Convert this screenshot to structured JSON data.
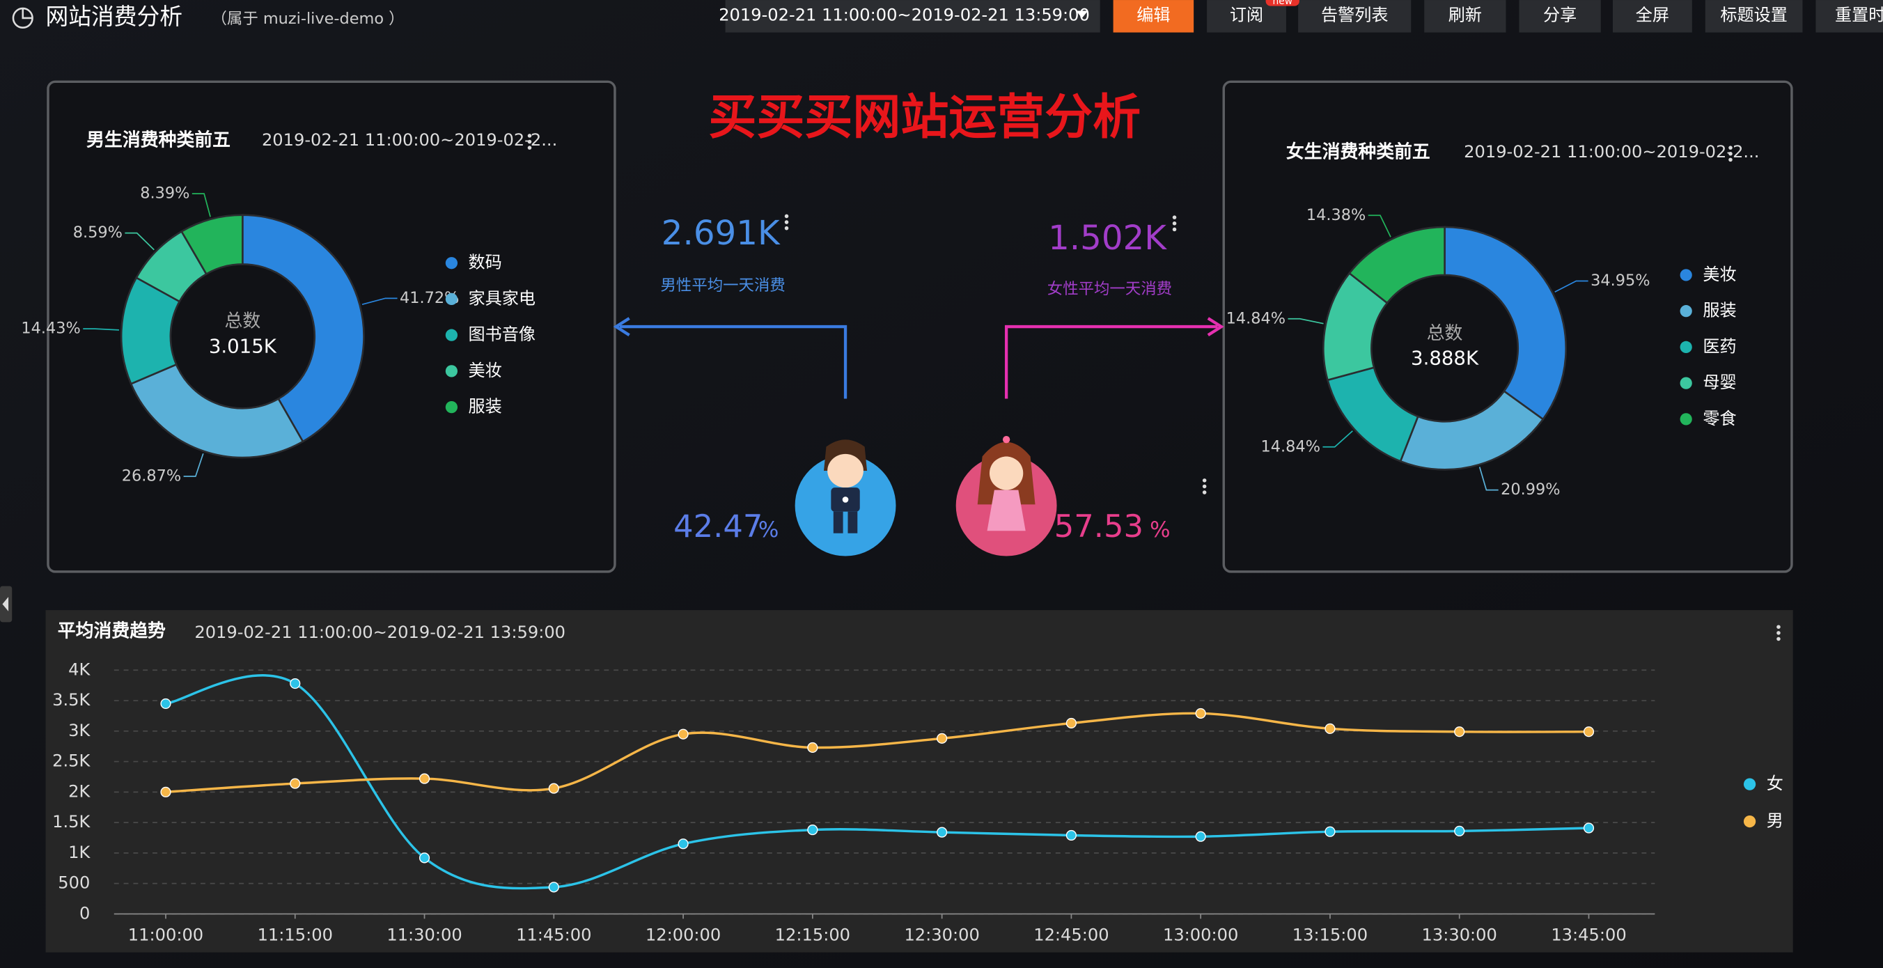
{
  "header": {
    "title": "网站消费分析",
    "owner": "（属于 muzi-live-demo ）",
    "time_range": "2019-02-21 11:00:00~2019-02-21 13:59:00",
    "buttons": [
      "编辑",
      "订阅",
      "告警列表",
      "刷新",
      "分享",
      "全屏",
      "标题设置",
      "重置时间"
    ],
    "badge": "new"
  },
  "banner": "买买买网站运营分析",
  "stats": {
    "male": {
      "value_label": "2.691K",
      "caption": "男性平均一天消费",
      "percent": 42.47,
      "unit": "%"
    },
    "female": {
      "value_label": "1.502K",
      "caption": "女性平均一天消费",
      "percent": 57.53,
      "unit": "%"
    }
  },
  "chart_data": [
    {
      "type": "pie",
      "title": "男生消费种类前五",
      "subtitle": "2019-02-21 11:00:00~2019-02-2...",
      "center_title": "总数",
      "center_value": "3.015K",
      "categories": [
        "数码",
        "家具家电",
        "图书音像",
        "美妆",
        "服装"
      ],
      "values": [
        41.72,
        26.87,
        14.43,
        8.59,
        8.39
      ],
      "value_labels": [
        "41.72%",
        "26.87%",
        "14.43%",
        "8.59%",
        "8.39%"
      ],
      "colors": [
        "#2a86df",
        "#5ab0d8",
        "#1db3ae",
        "#3cc79f",
        "#22b45b"
      ]
    },
    {
      "type": "pie",
      "title": "女生消费种类前五",
      "subtitle": "2019-02-21 11:00:00~2019-02-2...",
      "center_title": "总数",
      "center_value": "3.888K",
      "categories": [
        "美妆",
        "服装",
        "医药",
        "母婴",
        "零食"
      ],
      "values": [
        34.95,
        20.99,
        14.84,
        14.84,
        14.38
      ],
      "value_labels": [
        "34.95%",
        "20.99%",
        "14.84%",
        "14.84%",
        "14.38%"
      ],
      "colors": [
        "#2a86df",
        "#5ab0d8",
        "#1db3ae",
        "#3cc79f",
        "#22b45b"
      ]
    },
    {
      "type": "line",
      "title": "平均消费趋势",
      "subtitle": "2019-02-21 11:00:00~2019-02-21 13:59:00",
      "categories": [
        "11:00:00",
        "11:15:00",
        "11:30:00",
        "11:45:00",
        "12:00:00",
        "12:15:00",
        "12:30:00",
        "12:45:00",
        "13:00:00",
        "13:15:00",
        "13:30:00",
        "13:45:00"
      ],
      "series": [
        {
          "name": "女",
          "color": "#2cc3e8",
          "values": [
            3450,
            3780,
            920,
            440,
            1150,
            1380,
            1340,
            1290,
            1270,
            1350,
            1360,
            1410
          ]
        },
        {
          "name": "男",
          "color": "#f6b648",
          "values": [
            2000,
            2140,
            2220,
            2060,
            2950,
            2730,
            2880,
            3130,
            3290,
            3040,
            2990,
            2990
          ]
        }
      ],
      "ylim": [
        0,
        4000
      ],
      "yticks": [
        0,
        500,
        {
          "value": 1000,
          "label": "1K"
        },
        {
          "value": 1500,
          "label": "1.5K"
        },
        {
          "value": 2000,
          "label": "2K"
        },
        {
          "value": 2500,
          "label": "2.5K"
        },
        {
          "value": 3000,
          "label": "3K"
        },
        {
          "value": 3500,
          "label": "3.5K"
        },
        {
          "value": 4000,
          "label": "4K"
        }
      ],
      "grid": true
    }
  ]
}
